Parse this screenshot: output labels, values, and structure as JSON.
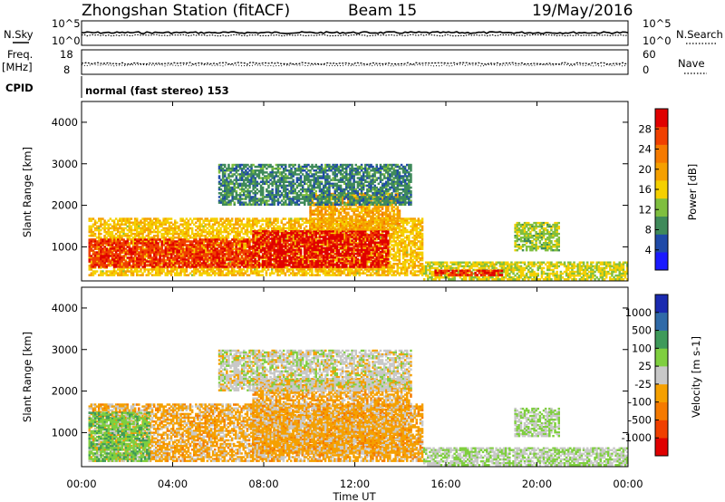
{
  "header": {
    "title": "Zhongshan Station (fitACF)",
    "beam": "Beam 15",
    "date": "19/May/2016"
  },
  "nsky_panel": {
    "label": "N.Sky",
    "left_ticks": [
      "10^5",
      "10^0"
    ],
    "right_ticks": [
      "10^5",
      "10^0"
    ],
    "right_label": "N.Search"
  },
  "freq_panel": {
    "label_line1": "Freq.",
    "label_line2": "[MHz]",
    "left_ticks": [
      "18",
      "8"
    ],
    "right_ticks": [
      "60",
      "0"
    ],
    "right_label": "Nave"
  },
  "cpid": {
    "label": "CPID",
    "text": "normal (fast stereo) 153"
  },
  "time_axis": {
    "label": "Time UT",
    "ticks": [
      "00:00",
      "04:00",
      "08:00",
      "12:00",
      "16:00",
      "20:00",
      "00:00"
    ]
  },
  "colors": {
    "power_scale": [
      "#1a1aff",
      "#1f4aa8",
      "#3f8a5a",
      "#7fbf3f",
      "#f5d000",
      "#f5a000",
      "#f57a00",
      "#f04000",
      "#e00000"
    ],
    "velocity_scale": [
      "#e00000",
      "#f04000",
      "#f57a00",
      "#f5a000",
      "#c8c8c8",
      "#7fcf3f",
      "#3f9a5a",
      "#2f6aa8",
      "#1a2ab0"
    ]
  },
  "chart_data": [
    {
      "type": "heatmap",
      "title": "",
      "ylabel": "Slant Range [km]",
      "xlabel": "",
      "xlim": [
        0,
        24
      ],
      "ylim": [
        180,
        4500
      ],
      "yticks": [
        "1000",
        "2000",
        "3000",
        "4000"
      ],
      "colorbar": {
        "label": "Power [dB]",
        "ticks": [
          "4",
          "8",
          "12",
          "16",
          "20",
          "24",
          "28"
        ],
        "range": [
          0,
          30
        ]
      },
      "regions": [
        {
          "t0": 0.3,
          "t1": 15.0,
          "r0": 300,
          "r1": 1700,
          "value": 16
        },
        {
          "t0": 0.3,
          "t1": 7.5,
          "r0": 500,
          "r1": 1200,
          "value": 26
        },
        {
          "t0": 7.5,
          "t1": 13.5,
          "r0": 500,
          "r1": 1400,
          "value": 28
        },
        {
          "t0": 10.0,
          "t1": 14.0,
          "r0": 1400,
          "r1": 2300,
          "value": 18
        },
        {
          "t0": 6.0,
          "t1": 14.5,
          "r0": 2000,
          "r1": 3000,
          "value": 8
        },
        {
          "t0": 15.0,
          "t1": 24.0,
          "r0": 200,
          "r1": 650,
          "value": 14
        },
        {
          "t0": 15.5,
          "t1": 18.5,
          "r0": 300,
          "r1": 450,
          "value": 27
        },
        {
          "t0": 19.0,
          "t1": 21.0,
          "r0": 900,
          "r1": 1600,
          "value": 12
        }
      ]
    },
    {
      "type": "heatmap",
      "title": "",
      "ylabel": "Slant Range [km]",
      "xlabel": "Time UT",
      "xlim": [
        0,
        24
      ],
      "ylim": [
        180,
        4500
      ],
      "yticks": [
        "1000",
        "2000",
        "3000",
        "4000"
      ],
      "colorbar": {
        "label": "Velocity [m s-1]",
        "ticks": [
          "-1000",
          "-500",
          "-100",
          "-25",
          "25",
          "100",
          "500",
          "1000"
        ],
        "range": [
          -1500,
          1500
        ]
      },
      "regions": [
        {
          "t0": 0.3,
          "t1": 15.0,
          "r0": 300,
          "r1": 1700,
          "value": -300
        },
        {
          "t0": 0.3,
          "t1": 3.0,
          "r0": 300,
          "r1": 1500,
          "value": 400
        },
        {
          "t0": 7.5,
          "t1": 14.5,
          "r0": 500,
          "r1": 2300,
          "value": -300
        },
        {
          "t0": 6.0,
          "t1": 14.5,
          "r0": 2000,
          "r1": 3000,
          "value": 0
        },
        {
          "t0": 15.0,
          "t1": 24.0,
          "r0": 200,
          "r1": 650,
          "value": 150
        },
        {
          "t0": 19.0,
          "t1": 21.0,
          "r0": 900,
          "r1": 1600,
          "value": 200
        }
      ]
    }
  ]
}
